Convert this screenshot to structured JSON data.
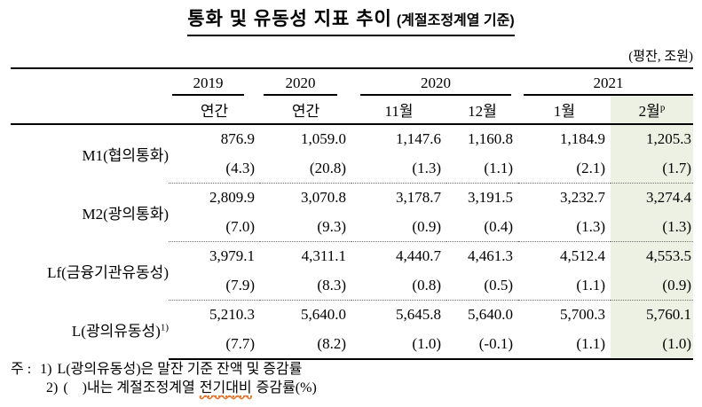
{
  "title": {
    "main": "통화 및 유동성 지표 추이",
    "sub": "(계절조정계열 기준)"
  },
  "unit_note": "(평잔, 조원)",
  "table": {
    "year_headers": [
      {
        "label": "2019"
      },
      {
        "label": "2020"
      },
      {
        "label": "2020"
      },
      {
        "label": "2021"
      }
    ],
    "sub_headers": [
      "연간",
      "연간",
      "11월",
      "12월",
      "1월",
      "2월"
    ],
    "provisional_superscript": "p",
    "rows": [
      {
        "label": "M1(협의통화)",
        "values": [
          "876.9",
          "1,059.0",
          "1,147.6",
          "1,160.8",
          "1,184.9",
          "1,205.3"
        ],
        "pcts": [
          "(4.3)",
          "(20.8)",
          "(1.3)",
          "(1.1)",
          "(2.1)",
          "(1.7)"
        ]
      },
      {
        "label": "M2(광의통화)",
        "values": [
          "2,809.9",
          "3,070.8",
          "3,178.7",
          "3,191.5",
          "3,232.7",
          "3,274.4"
        ],
        "pcts": [
          "(7.0)",
          "(9.3)",
          "(0.9)",
          "(0.4)",
          "(1.3)",
          "(1.3)"
        ]
      },
      {
        "label": "Lf(금융기관유동성)",
        "values": [
          "3,979.1",
          "4,311.1",
          "4,440.7",
          "4,461.3",
          "4,512.4",
          "4,553.5"
        ],
        "pcts": [
          "(7.9)",
          "(8.3)",
          "(0.8)",
          "(0.5)",
          "(1.1)",
          "(0.9)"
        ]
      },
      {
        "label": "L(광의유동성)",
        "label_sup": "1)",
        "values": [
          "5,210.3",
          "5,640.0",
          "5,645.8",
          "5,640.0",
          "5,700.3",
          "5,760.1"
        ],
        "pcts": [
          "(7.7)",
          "(8.2)",
          "(1.0)",
          "(-0.1)",
          "(1.1)",
          "(1.0)"
        ]
      }
    ]
  },
  "footnotes": {
    "prefix": "주 :",
    "note1": {
      "marker": "1)",
      "text": "L(광의유동성)은 말잔 기준 잔액 및 증감률"
    },
    "note2": {
      "marker": "2)",
      "pre": "(    )내는 계절조정계열",
      "highlighted": "전기대비",
      "post": "증감률(%)"
    }
  },
  "colors": {
    "highlight_column": "#ecf1e3",
    "footnote_underline": "#e0782f"
  }
}
